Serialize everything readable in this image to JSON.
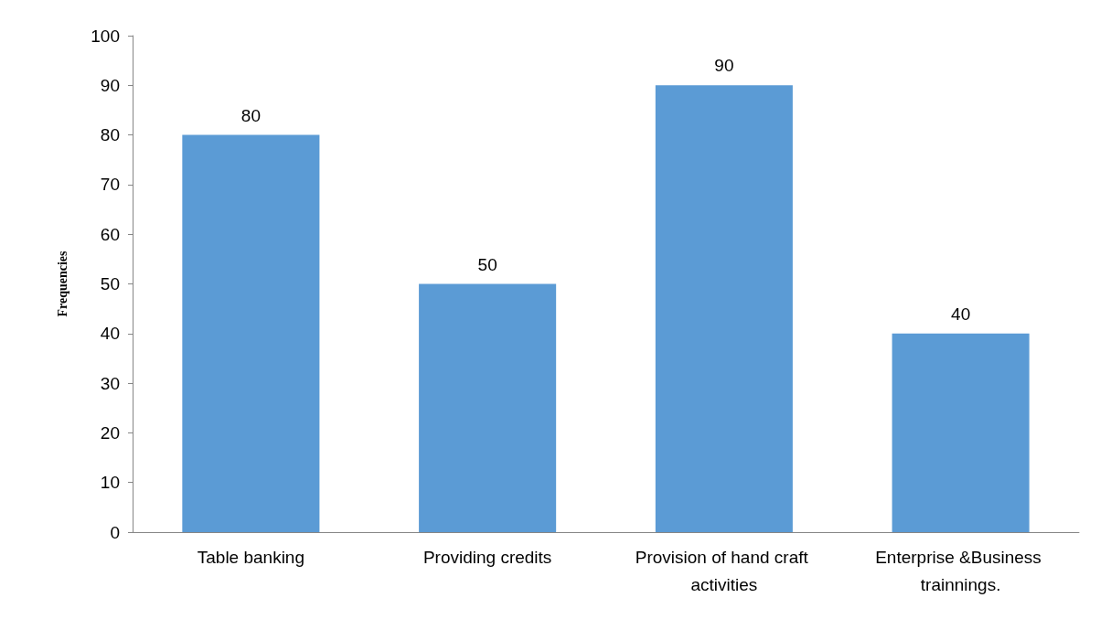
{
  "chart_data": {
    "type": "bar",
    "ylabel": "Frequencies",
    "categories": [
      "Table banking",
      "Providing credits",
      "Provision of hand craft activities",
      "Enterprise &Business trainnings."
    ],
    "values": [
      80,
      50,
      90,
      40
    ],
    "color": "#5b9bd5",
    "ylim": [
      0,
      100
    ],
    "yticks": [
      0,
      10,
      20,
      30,
      40,
      50,
      60,
      70,
      80,
      90,
      100
    ],
    "grid": false,
    "data_labels": true
  }
}
